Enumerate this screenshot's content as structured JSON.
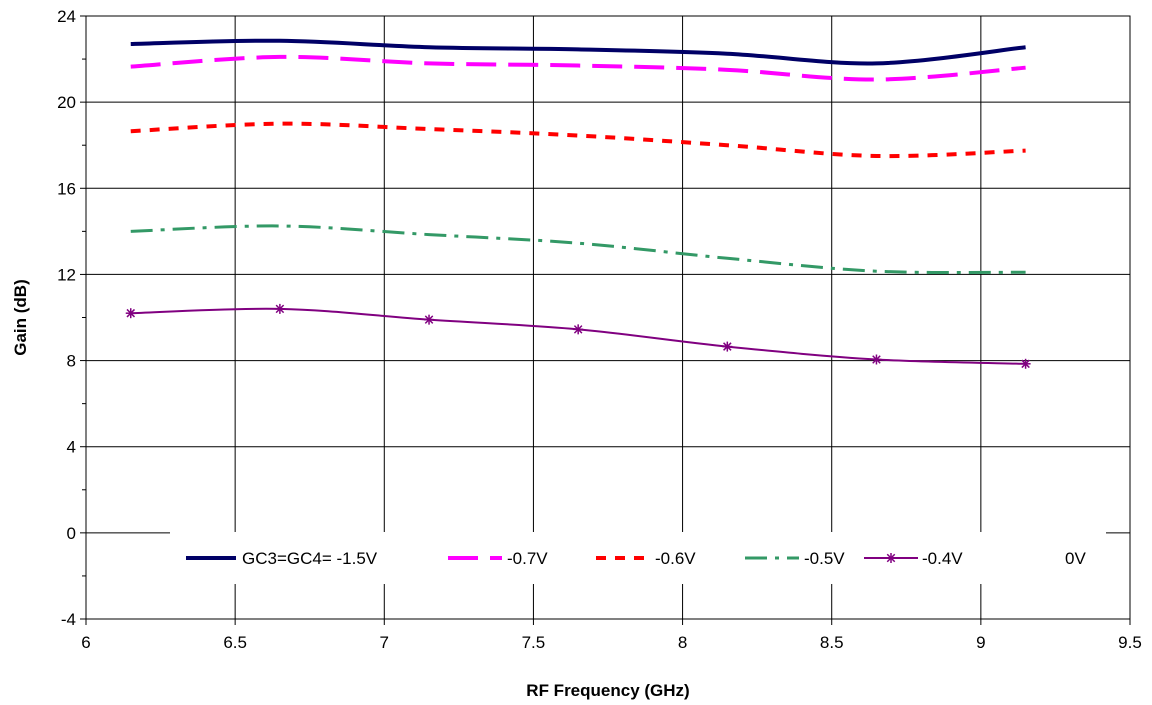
{
  "chart_data": {
    "type": "line",
    "title": "",
    "xlabel": "RF Frequency (GHz)",
    "ylabel": "Gain (dB)",
    "xlim": [
      6,
      9.5
    ],
    "ylim": [
      -4,
      24
    ],
    "xticks": [
      6,
      6.5,
      7,
      7.5,
      8,
      8.5,
      9,
      9.5
    ],
    "yticks": [
      -4,
      0,
      4,
      8,
      12,
      16,
      20,
      24
    ],
    "xtick_labels": [
      "6",
      "6.5",
      "7",
      "7.5",
      "8",
      "8.5",
      "9",
      "9.5"
    ],
    "ytick_labels": [
      "-4",
      "0",
      "4",
      "8",
      "12",
      "16",
      "20",
      "24"
    ],
    "grid": true,
    "legend_position": "bottom",
    "series": [
      {
        "name": "GC3=GC4= -1.5V",
        "color": "#000066",
        "style": "solid",
        "x": [
          6.15,
          6.65,
          7.15,
          7.65,
          8.15,
          8.65,
          9.15
        ],
        "y": [
          22.7,
          22.85,
          22.55,
          22.45,
          22.25,
          21.8,
          22.55
        ]
      },
      {
        "name": "-0.7V",
        "color": "#ff00ff",
        "style": "long-dash",
        "x": [
          6.15,
          6.65,
          7.15,
          7.65,
          8.15,
          8.65,
          9.15
        ],
        "y": [
          21.65,
          22.1,
          21.8,
          21.7,
          21.5,
          21.05,
          21.6
        ]
      },
      {
        "name": "-0.6V",
        "color": "#ff0000",
        "style": "short-dash",
        "x": [
          6.15,
          6.65,
          7.15,
          7.65,
          8.15,
          8.65,
          9.15
        ],
        "y": [
          18.65,
          19.0,
          18.75,
          18.45,
          18.0,
          17.5,
          17.75
        ]
      },
      {
        "name": "-0.5V",
        "color": "#339966",
        "style": "dash-dot",
        "x": [
          6.15,
          6.65,
          7.15,
          7.65,
          8.15,
          8.65,
          9.15
        ],
        "y": [
          14.0,
          14.25,
          13.85,
          13.45,
          12.75,
          12.15,
          12.1
        ]
      },
      {
        "name": "-0.4V",
        "color": "#800080",
        "style": "solid-star",
        "x": [
          6.15,
          6.65,
          7.15,
          7.65,
          8.15,
          8.65,
          9.15
        ],
        "y": [
          10.2,
          10.4,
          9.9,
          9.45,
          8.65,
          8.05,
          7.85
        ]
      },
      {
        "name": "0V",
        "color": "#000000",
        "style": "none",
        "x": [],
        "y": []
      }
    ]
  }
}
